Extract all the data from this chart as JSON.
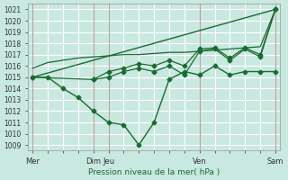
{
  "title": "",
  "xlabel": "Pression niveau de la mer( hPa )",
  "ylabel": "",
  "bg_color": "#c8e8e0",
  "grid_color": "#ffffff",
  "line_color": "#1a6b30",
  "ylim": [
    1008.5,
    1021.5
  ],
  "yticks": [
    1009,
    1010,
    1011,
    1012,
    1013,
    1014,
    1015,
    1016,
    1017,
    1018,
    1019,
    1020,
    1021
  ],
  "xtick_labels": [
    "Mer",
    "",
    "",
    "",
    "Dim",
    "Jeu",
    "",
    "",
    "",
    "",
    "",
    "Ven",
    "",
    "",
    "",
    "",
    "Sam"
  ],
  "xtick_positions": [
    0,
    1,
    2,
    3,
    4,
    5,
    6,
    7,
    8,
    9,
    10,
    11,
    12,
    13,
    14,
    15,
    16
  ],
  "vlines": [
    0,
    4,
    5,
    11,
    16
  ],
  "line1_x": [
    0,
    1,
    2,
    3,
    4,
    5,
    6,
    7,
    8,
    9,
    10,
    11,
    12,
    13,
    14,
    15,
    16
  ],
  "line1_y": [
    1015.0,
    1015.0,
    1014.0,
    1013.2,
    1012.0,
    1011.0,
    1010.8,
    1009.0,
    1011.0,
    1014.8,
    1015.5,
    1015.2,
    1016.0,
    1015.2,
    1015.5,
    1015.5,
    1015.5
  ],
  "line2_x": [
    0,
    1,
    2,
    3,
    4,
    5,
    6,
    7,
    8,
    9,
    10,
    11,
    12,
    13,
    14,
    15,
    16
  ],
  "line2_y": [
    1015.8,
    1016.3,
    1016.5,
    1016.7,
    1016.8,
    1016.9,
    1017.0,
    1017.0,
    1017.1,
    1017.2,
    1017.2,
    1017.3,
    1017.4,
    1017.5,
    1017.6,
    1017.7,
    1021.0
  ],
  "line3_x": [
    0,
    4,
    5,
    6,
    7,
    8,
    9,
    10,
    11,
    12,
    13,
    14,
    15,
    16
  ],
  "line3_y": [
    1015.0,
    1014.8,
    1015.0,
    1015.5,
    1015.8,
    1015.5,
    1016.0,
    1015.2,
    1017.3,
    1017.5,
    1016.5,
    1017.5,
    1016.8,
    1021.0
  ],
  "line4_x": [
    0,
    16
  ],
  "line4_y": [
    1015.0,
    1021.0
  ],
  "line5_x": [
    4,
    5,
    6,
    7,
    8,
    9,
    10,
    11,
    12,
    13,
    14,
    15,
    16
  ],
  "line5_y": [
    1014.8,
    1015.5,
    1015.8,
    1016.2,
    1016.0,
    1016.5,
    1016.0,
    1017.5,
    1017.6,
    1016.7,
    1017.6,
    1017.0,
    1021.0
  ]
}
